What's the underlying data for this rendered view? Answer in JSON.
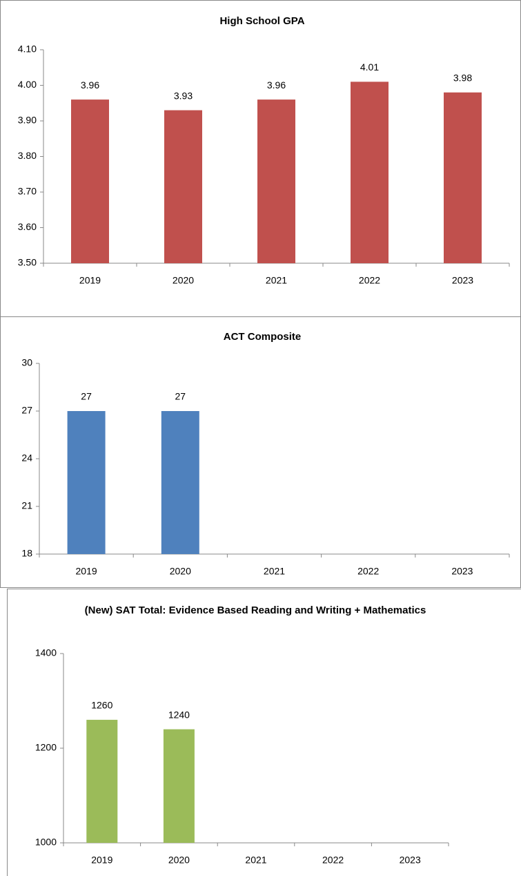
{
  "chart_data": [
    {
      "type": "bar",
      "title": "High School GPA",
      "categories": [
        "2019",
        "2020",
        "2021",
        "2022",
        "2023"
      ],
      "values": [
        3.96,
        3.93,
        3.96,
        4.01,
        3.98
      ],
      "color": "#c0504d",
      "ylim": [
        3.5,
        4.1
      ],
      "yticks": [
        {
          "value": 3.5,
          "label": "3.50"
        },
        {
          "value": 3.6,
          "label": "3.60"
        },
        {
          "value": 3.7,
          "label": "3.70"
        },
        {
          "value": 3.8,
          "label": "3.80"
        },
        {
          "value": 3.9,
          "label": "3.90"
        },
        {
          "value": 4.0,
          "label": "4.00"
        },
        {
          "value": 4.1,
          "label": "4.10"
        }
      ]
    },
    {
      "type": "bar",
      "title": "ACT Composite",
      "categories": [
        "2019",
        "2020",
        "2021",
        "2022",
        "2023"
      ],
      "values": [
        27,
        27,
        null,
        null,
        null
      ],
      "color": "#4f81bd",
      "ylim": [
        18,
        30
      ],
      "yticks": [
        18,
        21,
        24,
        27,
        30
      ]
    },
    {
      "type": "bar",
      "title": "(New) SAT Total: Evidence Based Reading and Writing + Mathematics",
      "categories": [
        "2019",
        "2020",
        "2021",
        "2022",
        "2023"
      ],
      "values": [
        1260,
        1240,
        null,
        null,
        null
      ],
      "color": "#9bbb59",
      "ylim": [
        1000,
        1400
      ],
      "yticks": [
        1000,
        1200,
        1400
      ]
    }
  ]
}
